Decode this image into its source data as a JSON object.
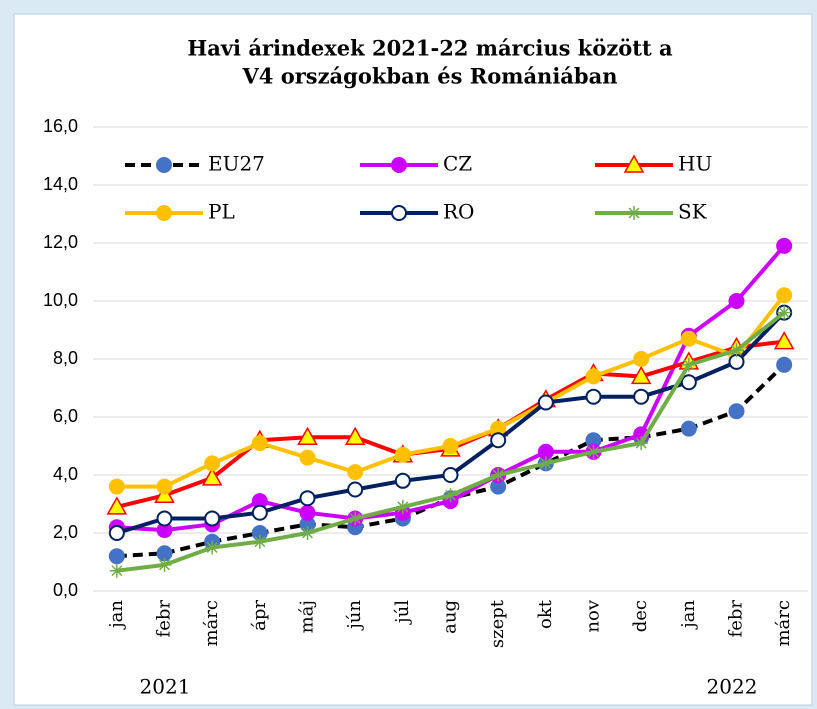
{
  "chart_data": {
    "type": "line",
    "title": [
      "Havi árindexek 2021-22 március között a",
      "V4 országokban és Romániában"
    ],
    "categories": [
      "jan",
      "febr",
      "márc",
      "ápr",
      "máj",
      "jún",
      "júl",
      "aug",
      "szept",
      "okt",
      "nov",
      "dec",
      "jan",
      "febr",
      "márc"
    ],
    "annotations": [
      "2021",
      "2022"
    ],
    "series": [
      {
        "name": "EU27",
        "color": "#000000",
        "marker_color": "#4472c4",
        "dash": true,
        "marker": "circle",
        "values": [
          1.2,
          1.3,
          1.7,
          2.0,
          2.3,
          2.2,
          2.5,
          3.2,
          3.6,
          4.4,
          5.2,
          5.3,
          5.6,
          6.2,
          7.8
        ]
      },
      {
        "name": "CZ",
        "color": "#cc00ff",
        "marker_color": "#cc00ff",
        "dash": false,
        "marker": "circle",
        "values": [
          2.2,
          2.1,
          2.3,
          3.1,
          2.7,
          2.5,
          2.7,
          3.1,
          4.0,
          4.8,
          4.8,
          5.4,
          8.8,
          10.0,
          11.9
        ]
      },
      {
        "name": "HU",
        "color": "#ff0000",
        "marker_color": "#ffff00",
        "dash": false,
        "marker": "triangle",
        "values": [
          2.9,
          3.3,
          3.9,
          5.2,
          5.3,
          5.3,
          4.7,
          4.9,
          5.6,
          6.6,
          7.5,
          7.4,
          7.9,
          8.4,
          8.6
        ]
      },
      {
        "name": "PL",
        "color": "#ffc000",
        "marker_color": "#ffc000",
        "dash": false,
        "marker": "circle",
        "values": [
          3.6,
          3.6,
          4.4,
          5.1,
          4.6,
          4.1,
          4.7,
          5.0,
          5.6,
          6.5,
          7.4,
          8.0,
          8.7,
          8.1,
          10.2
        ]
      },
      {
        "name": "RO",
        "color": "#002060",
        "marker_color": "#ffffff",
        "dash": false,
        "marker": "circle",
        "values": [
          2.0,
          2.5,
          2.5,
          2.7,
          3.2,
          3.5,
          3.8,
          4.0,
          5.2,
          6.5,
          6.7,
          6.7,
          7.2,
          7.9,
          9.6
        ]
      },
      {
        "name": "SK",
        "color": "#70ad47",
        "marker_color": "#70ad47",
        "dash": false,
        "marker": "star",
        "values": [
          0.7,
          0.9,
          1.5,
          1.7,
          2.0,
          2.5,
          2.9,
          3.3,
          4.0,
          4.4,
          4.8,
          5.1,
          7.8,
          8.3,
          9.6
        ]
      }
    ],
    "ylim": [
      0,
      16
    ],
    "yticks": [
      {
        "value": 0,
        "label": "0,0"
      },
      {
        "value": 2,
        "label": "2,0"
      },
      {
        "value": 4,
        "label": "4,0"
      },
      {
        "value": 6,
        "label": "6,0"
      },
      {
        "value": 8,
        "label": "8,0"
      },
      {
        "value": 10,
        "label": "10,0"
      },
      {
        "value": 12,
        "label": "12,0"
      },
      {
        "value": 14,
        "label": "14,0"
      },
      {
        "value": 16,
        "label": "16,0"
      }
    ],
    "grid": true
  }
}
